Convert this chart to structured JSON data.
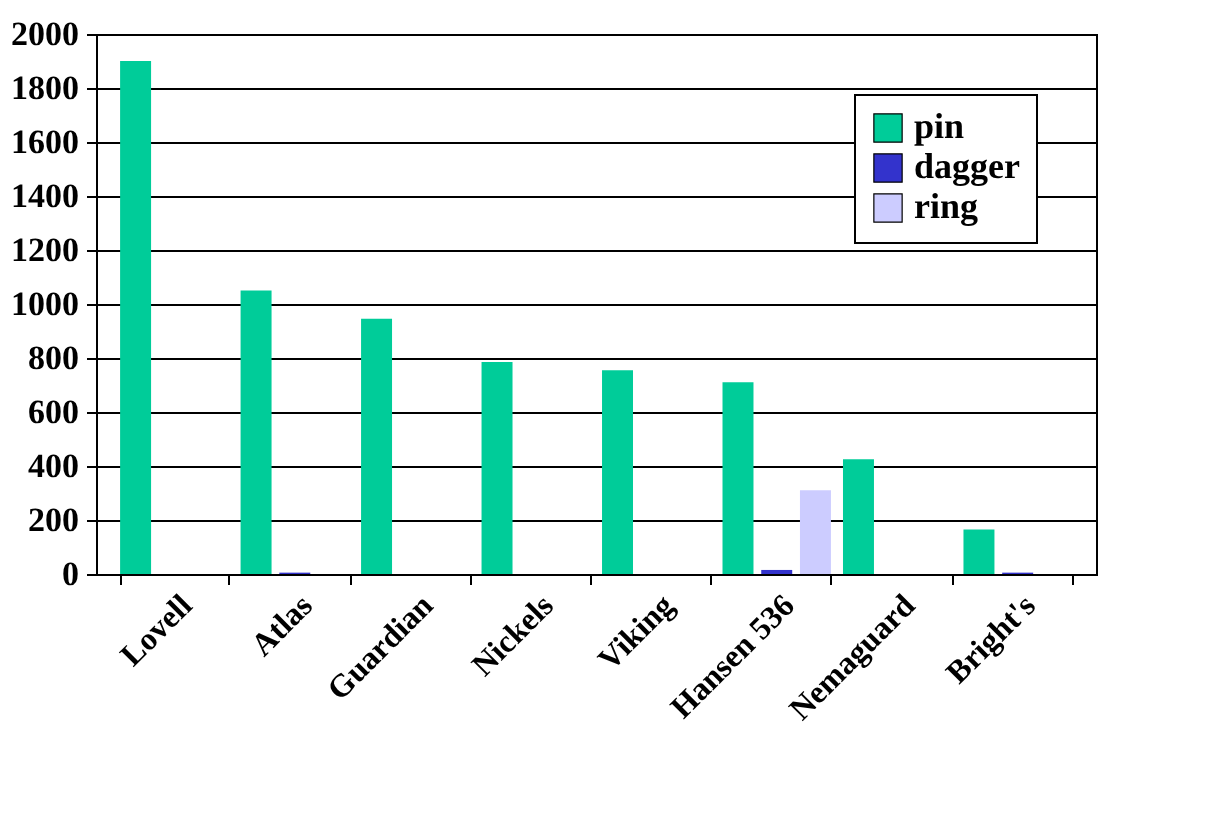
{
  "chart_data": {
    "type": "bar",
    "categories": [
      "Lovell",
      "Atlas",
      "Guardian",
      "Nickels",
      "Viking",
      "Hansen 536",
      "Nemaguard",
      "Bright's"
    ],
    "series": [
      {
        "name": "pin",
        "color": "#00cc99",
        "values": [
          1900,
          1050,
          945,
          785,
          755,
          710,
          425,
          165
        ]
      },
      {
        "name": "dagger",
        "color": "#3333cc",
        "values": [
          0,
          5,
          0,
          0,
          0,
          15,
          0,
          5
        ]
      },
      {
        "name": "ring",
        "color": "#ccccff",
        "values": [
          0,
          0,
          0,
          0,
          0,
          310,
          0,
          0
        ]
      }
    ],
    "ylim": [
      0,
      2000
    ],
    "yticks": [
      0,
      200,
      400,
      600,
      800,
      1000,
      1200,
      1400,
      1600,
      1800,
      2000
    ],
    "grid": "y",
    "legend": "top right"
  }
}
